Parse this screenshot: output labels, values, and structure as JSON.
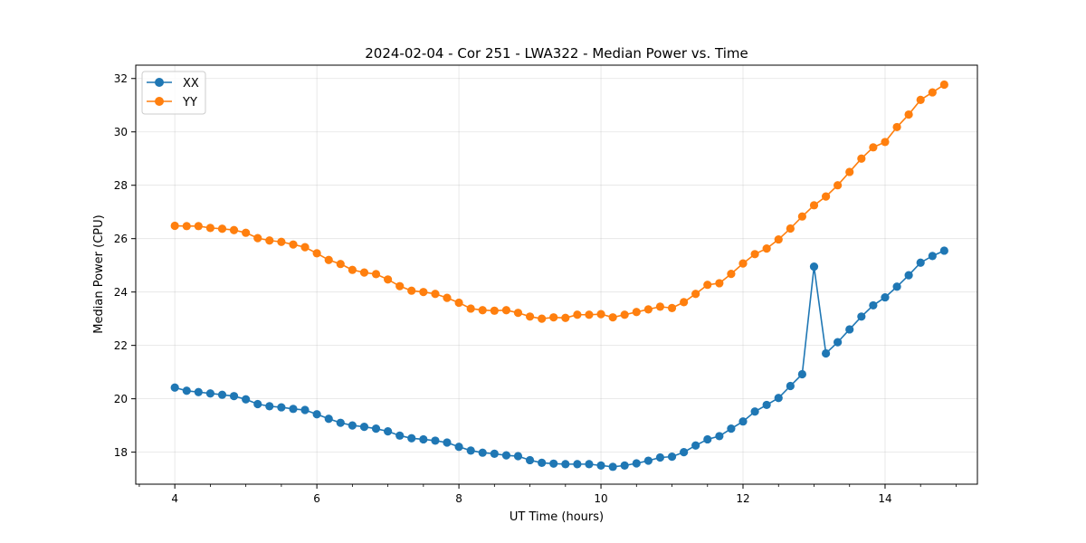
{
  "chart_data": {
    "type": "line",
    "title": "2024-02-04 - Cor 251 - LWA322 - Median Power vs. Time",
    "xlabel": "UT Time (hours)",
    "ylabel": "Median Power (CPU)",
    "xlim": [
      3.45,
      15.3
    ],
    "ylim": [
      16.8,
      32.5
    ],
    "xticks": [
      4,
      6,
      8,
      10,
      12,
      14
    ],
    "xtick_labels": [
      "4",
      "6",
      "8",
      "10",
      "12",
      "14"
    ],
    "yticks": [
      18,
      20,
      22,
      24,
      26,
      28,
      30,
      32
    ],
    "ytick_labels": [
      "18",
      "20",
      "22",
      "24",
      "26",
      "28",
      "30",
      "32"
    ],
    "grid": true,
    "legend_position": "top-left",
    "x": [
      4.0,
      4.167,
      4.333,
      4.5,
      4.667,
      4.833,
      5.0,
      5.167,
      5.333,
      5.5,
      5.667,
      5.833,
      6.0,
      6.167,
      6.333,
      6.5,
      6.667,
      6.833,
      7.0,
      7.167,
      7.333,
      7.5,
      7.667,
      7.833,
      8.0,
      8.167,
      8.333,
      8.5,
      8.667,
      8.833,
      9.0,
      9.167,
      9.333,
      9.5,
      9.667,
      9.833,
      10.0,
      10.167,
      10.333,
      10.5,
      10.667,
      10.833,
      11.0,
      11.167,
      11.333,
      11.5,
      11.667,
      11.833,
      12.0,
      12.167,
      12.333,
      12.5,
      12.667,
      12.833,
      13.0,
      13.167,
      13.333,
      13.5,
      13.667,
      13.833,
      14.0,
      14.167,
      14.333,
      14.5,
      14.667,
      14.833
    ],
    "series": [
      {
        "name": "XX",
        "color": "#1f77b4",
        "values": [
          20.42,
          20.3,
          20.25,
          20.2,
          20.15,
          20.1,
          19.98,
          19.8,
          19.72,
          19.68,
          19.62,
          19.58,
          19.42,
          19.25,
          19.1,
          19.0,
          18.95,
          18.88,
          18.78,
          18.62,
          18.52,
          18.48,
          18.43,
          18.36,
          18.2,
          18.06,
          17.98,
          17.94,
          17.88,
          17.85,
          17.7,
          17.6,
          17.57,
          17.55,
          17.55,
          17.55,
          17.5,
          17.45,
          17.5,
          17.58,
          17.68,
          17.8,
          17.83,
          18.0,
          18.25,
          18.48,
          18.6,
          18.88,
          19.15,
          19.52,
          19.77,
          20.03,
          20.48,
          20.92,
          24.95,
          21.7,
          22.12,
          22.6,
          23.08,
          23.5,
          23.8,
          24.2,
          24.63,
          25.1,
          25.35,
          25.55
        ]
      },
      {
        "name": "YY",
        "color": "#ff7f0e",
        "values": [
          26.48,
          26.47,
          26.47,
          26.4,
          26.37,
          26.32,
          26.22,
          26.02,
          25.93,
          25.88,
          25.78,
          25.68,
          25.45,
          25.2,
          25.05,
          24.83,
          24.73,
          24.67,
          24.47,
          24.22,
          24.05,
          24.0,
          23.93,
          23.78,
          23.6,
          23.38,
          23.32,
          23.3,
          23.32,
          23.22,
          23.08,
          23.0,
          23.05,
          23.03,
          23.15,
          23.15,
          23.17,
          23.05,
          23.15,
          23.25,
          23.35,
          23.45,
          23.4,
          23.62,
          23.93,
          24.27,
          24.33,
          24.68,
          25.07,
          25.42,
          25.63,
          25.97,
          26.38,
          26.83,
          27.25,
          27.58,
          28.0,
          28.5,
          29.0,
          29.42,
          29.62,
          30.18,
          30.65,
          31.2,
          31.48,
          31.77
        ]
      }
    ]
  }
}
